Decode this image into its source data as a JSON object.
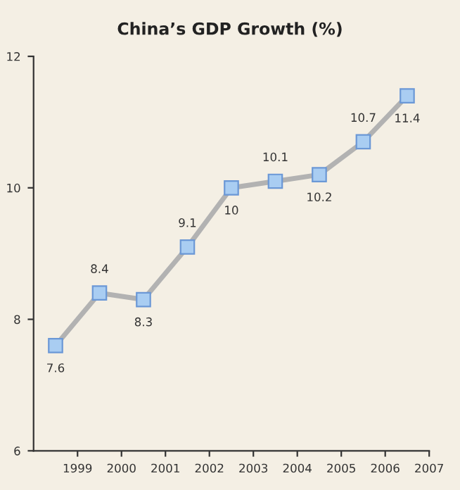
{
  "chart_data": {
    "type": "line",
    "title": "China’s GDP Growth (%)",
    "x": [
      1998.5,
      1999.5,
      2000.5,
      2001.5,
      2002.5,
      2003.5,
      2004.5,
      2005.5,
      2006.5
    ],
    "series": [
      {
        "color": "#b2b2b2",
        "values": [
          7.6,
          8.4,
          8.3,
          9.1,
          10,
          10.1,
          10.2,
          10.7,
          11.4
        ]
      }
    ],
    "xlim": [
      1998,
      2007
    ],
    "xticks": [
      1999,
      2000,
      2001,
      2002,
      2003,
      2004,
      2005,
      2006,
      2007
    ],
    "ylim": [
      6,
      12
    ],
    "yticks": [
      6,
      8,
      10,
      12
    ],
    "marker": "square",
    "line_style": "solid",
    "grid": false,
    "legend": false,
    "data_labels": true
  }
}
